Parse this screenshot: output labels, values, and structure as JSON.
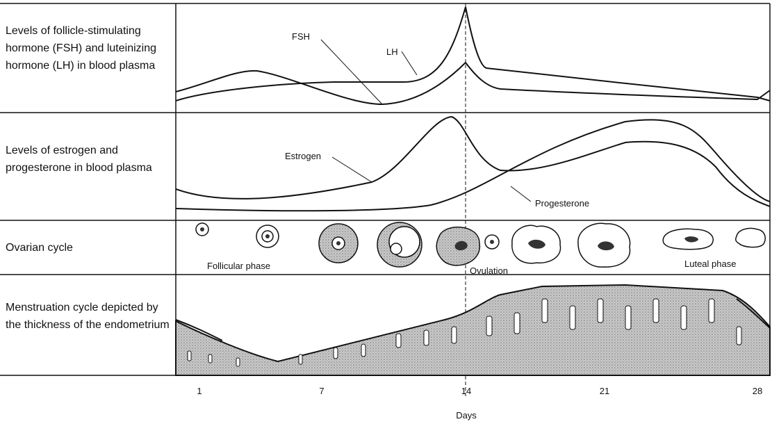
{
  "rows": [
    {
      "label": "Levels of follicle-stimulating hormone (FSH) and luteinizing hormone (LH) in blood plasma"
    },
    {
      "label": "Levels of estrogen and progesterone in blood plasma"
    },
    {
      "label": "Ovarian cycle"
    },
    {
      "label": "Menstruation cycle depicted by the thickness of the endometrium"
    }
  ],
  "curve_labels": {
    "fsh": "FSH",
    "lh": "LH",
    "estrogen": "Estrogen",
    "progesterone": "Progesterone"
  },
  "phase_labels": {
    "follicular": "Follicular phase",
    "ovulation": "Ovulation",
    "luteal": "Luteal phase"
  },
  "x_axis": {
    "ticks": [
      "1",
      "7",
      "14",
      "21",
      "28"
    ],
    "label": "Days"
  }
}
